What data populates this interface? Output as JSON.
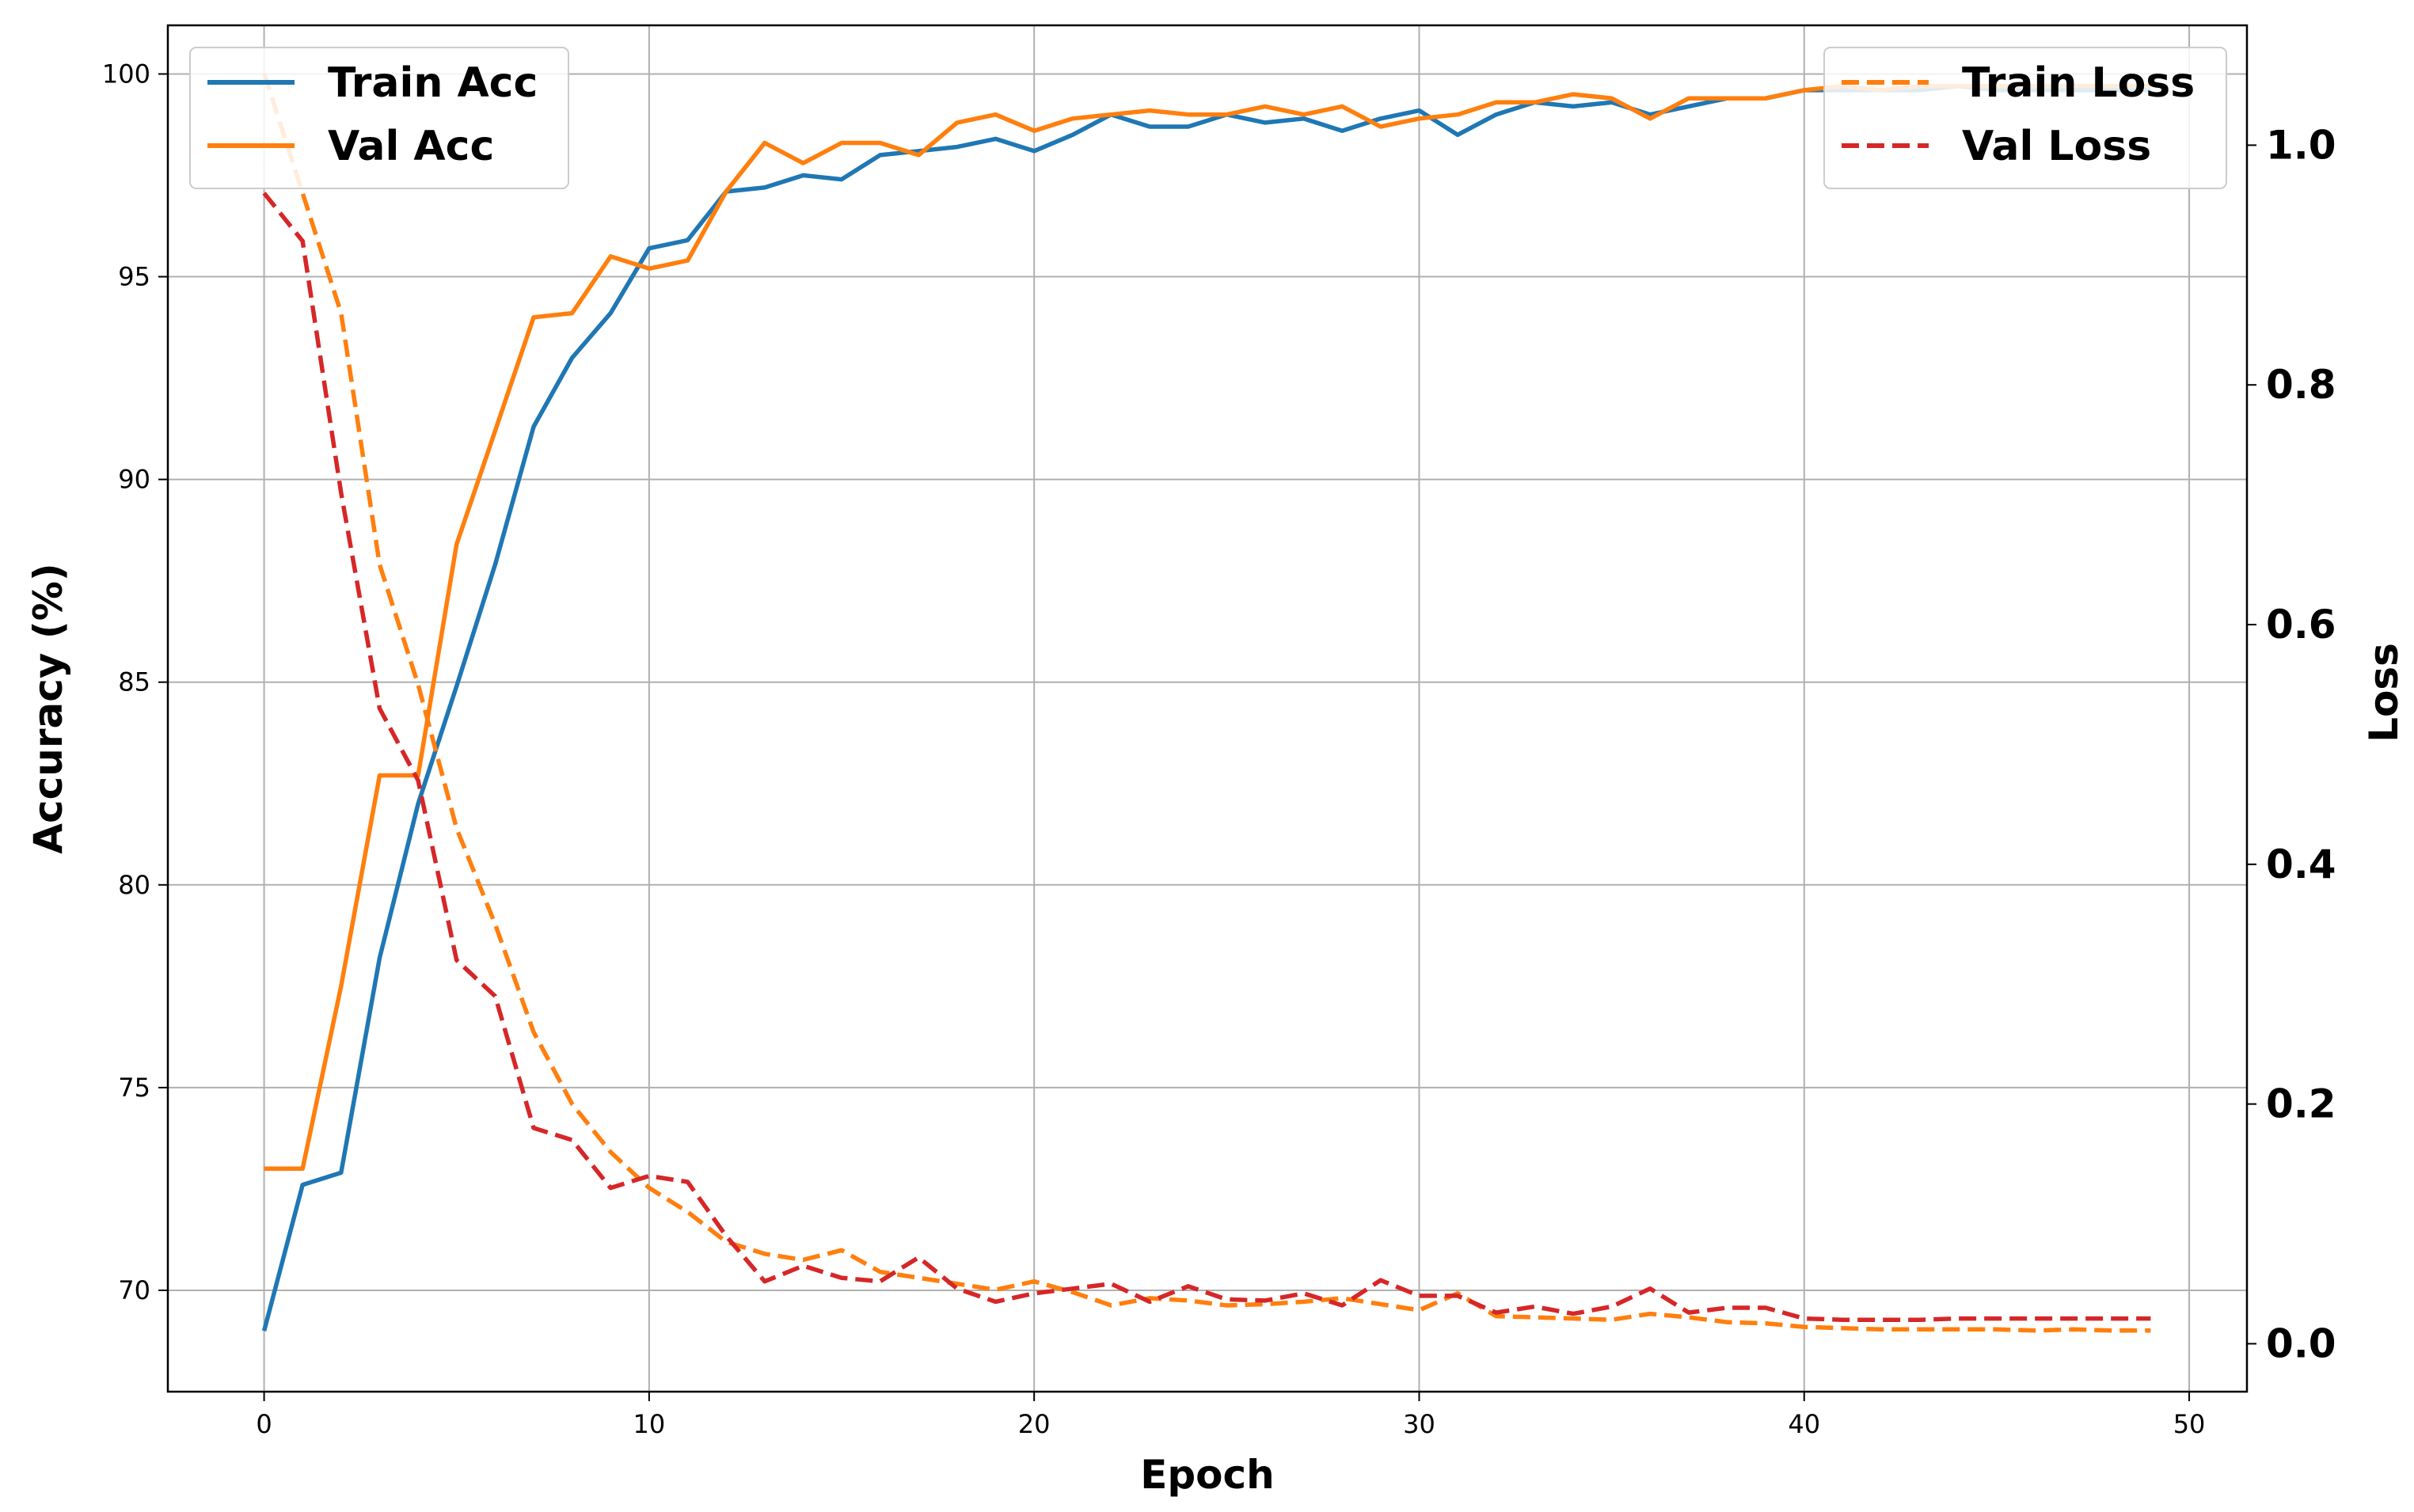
{
  "chart_data": {
    "type": "line",
    "xlabel": "Epoch",
    "ylabel_left": "Accuracy (%)",
    "ylabel_right": "Loss",
    "x_ticks": [
      "0",
      "10",
      "20",
      "30",
      "40",
      "50"
    ],
    "y_left_ticks": [
      "70",
      "75",
      "80",
      "85",
      "90",
      "95",
      "100"
    ],
    "y_right_ticks": [
      "0.0",
      "0.2",
      "0.4",
      "0.6",
      "0.8",
      "1.0"
    ],
    "xlim": [
      -2.5,
      51.5
    ],
    "ylim_left": [
      67.5,
      101.2
    ],
    "ylim_right": [
      -0.04,
      1.1
    ],
    "grid": true,
    "legend_left": {
      "placement": "upper-left",
      "entries": [
        "Train Acc",
        "Val Acc"
      ]
    },
    "legend_right": {
      "placement": "upper-right",
      "entries": [
        "Train Loss",
        "Val Loss"
      ]
    },
    "x": [
      0,
      1,
      2,
      3,
      4,
      5,
      6,
      7,
      8,
      9,
      10,
      11,
      12,
      13,
      14,
      15,
      16,
      17,
      18,
      19,
      20,
      21,
      22,
      23,
      24,
      25,
      26,
      27,
      28,
      29,
      30,
      31,
      32,
      33,
      34,
      35,
      36,
      37,
      38,
      39,
      40,
      41,
      42,
      43,
      44,
      45,
      46,
      47,
      48,
      49
    ],
    "series": [
      {
        "name": "Train Acc",
        "axis": "left",
        "color": "#1f77b4",
        "style": "solid",
        "values": [
          69.0,
          72.6,
          72.9,
          78.2,
          82.0,
          84.9,
          87.9,
          91.3,
          93.0,
          94.1,
          95.7,
          95.9,
          97.1,
          97.2,
          97.5,
          97.4,
          98.0,
          98.1,
          98.2,
          98.4,
          98.1,
          98.5,
          99.0,
          98.7,
          98.7,
          99.0,
          98.8,
          98.9,
          98.6,
          98.9,
          99.1,
          98.5,
          99.0,
          99.3,
          99.2,
          99.3,
          99.0,
          99.2,
          99.4,
          99.4,
          99.6,
          99.6,
          99.6,
          99.6,
          99.7,
          99.6,
          99.6,
          99.6,
          99.6,
          99.6
        ]
      },
      {
        "name": "Val Acc",
        "axis": "left",
        "color": "#ff7f0e",
        "style": "solid",
        "values": [
          73.0,
          73.0,
          77.5,
          82.7,
          82.7,
          88.4,
          91.2,
          94.0,
          94.1,
          95.5,
          95.2,
          95.4,
          97.1,
          98.3,
          97.8,
          98.3,
          98.3,
          98.0,
          98.8,
          99.0,
          98.6,
          98.9,
          99.0,
          99.1,
          99.0,
          99.0,
          99.2,
          99.0,
          99.2,
          98.7,
          98.9,
          99.0,
          99.3,
          99.3,
          99.5,
          99.4,
          98.9,
          99.4,
          99.4,
          99.4,
          99.6,
          99.7,
          99.6,
          99.7,
          99.7,
          99.7,
          99.7,
          99.7,
          99.7,
          99.7
        ]
      },
      {
        "name": "Train Loss",
        "axis": "right",
        "color": "#ff7f0e",
        "style": "dashed",
        "values": [
          1.06,
          0.96,
          0.86,
          0.65,
          0.55,
          0.43,
          0.35,
          0.26,
          0.2,
          0.16,
          0.13,
          0.11,
          0.085,
          0.075,
          0.07,
          0.078,
          0.06,
          0.055,
          0.05,
          0.045,
          0.052,
          0.043,
          0.032,
          0.038,
          0.036,
          0.032,
          0.033,
          0.035,
          0.038,
          0.033,
          0.028,
          0.042,
          0.023,
          0.022,
          0.021,
          0.02,
          0.025,
          0.022,
          0.018,
          0.017,
          0.014,
          0.013,
          0.012,
          0.012,
          0.012,
          0.012,
          0.011,
          0.012,
          0.011,
          0.011
        ]
      },
      {
        "name": "Val Loss",
        "axis": "right",
        "color": "#d62728",
        "style": "dashed",
        "values": [
          0.96,
          0.92,
          0.71,
          0.53,
          0.47,
          0.32,
          0.29,
          0.18,
          0.17,
          0.13,
          0.14,
          0.135,
          0.09,
          0.052,
          0.065,
          0.055,
          0.052,
          0.072,
          0.046,
          0.035,
          0.042,
          0.046,
          0.05,
          0.035,
          0.048,
          0.037,
          0.036,
          0.042,
          0.032,
          0.053,
          0.04,
          0.04,
          0.026,
          0.031,
          0.025,
          0.031,
          0.046,
          0.026,
          0.03,
          0.03,
          0.021,
          0.02,
          0.02,
          0.02,
          0.021,
          0.021,
          0.021,
          0.021,
          0.021,
          0.021
        ]
      }
    ]
  }
}
